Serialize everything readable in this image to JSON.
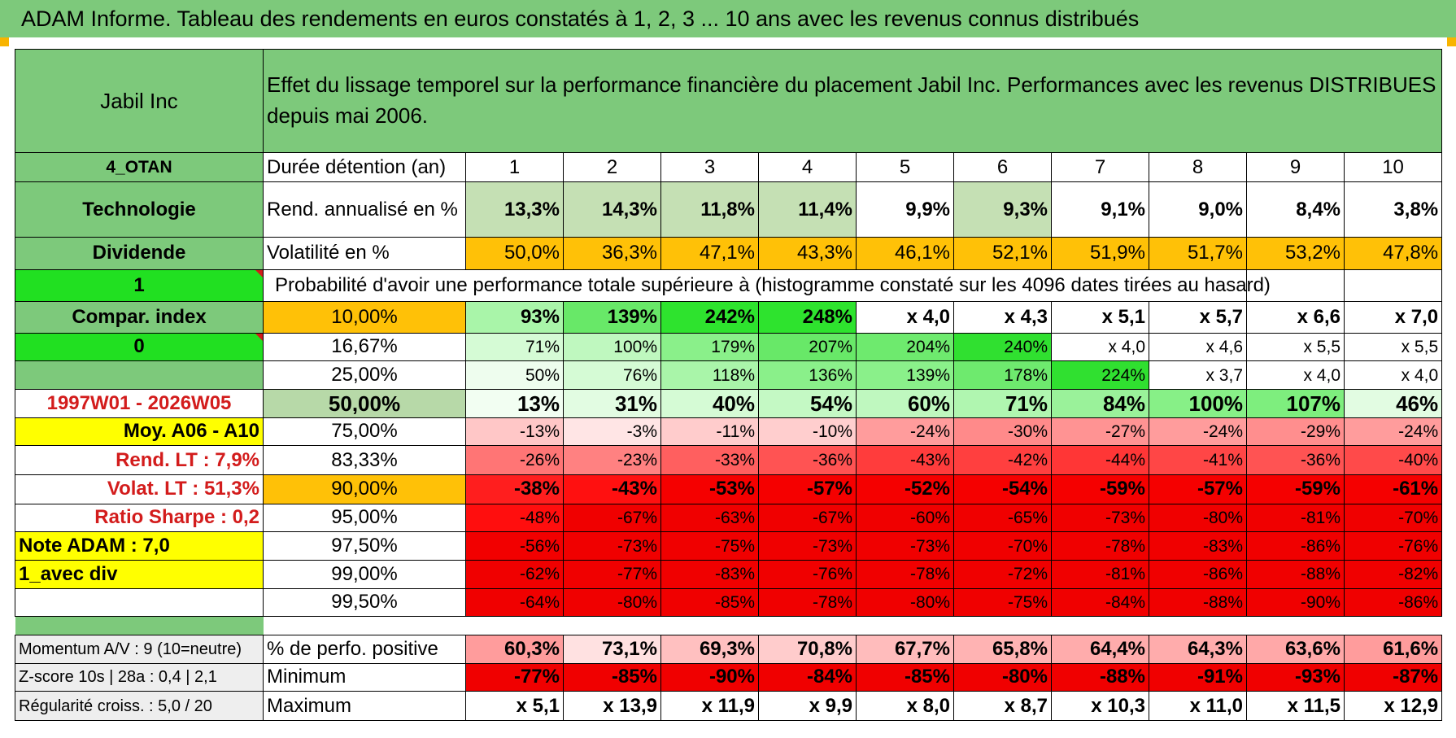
{
  "title": "ADAM Informe. Tableau des rendements en euros constatés à 1, 2, 3 ... 10 ans avec les revenus connus distribués",
  "header": {
    "company": "Jabil Inc",
    "description": "Effet du lissage temporel sur la performance financière du placement Jabil Inc. Performances avec les revenus DISTRIBUES depuis mai 2006."
  },
  "side": {
    "code": "4_OTAN",
    "sector": "Technologie",
    "dividend_label": "Dividende",
    "flag1": "1",
    "compar_label": "Compar. index",
    "flag2": "0",
    "period": "1997W01 - 2026W05",
    "moy": "Moy. A06 - A10",
    "rend_lt": "Rend. LT :   7,9%",
    "volat_lt": "Volat. LT :   51,3%",
    "sharpe": "Ratio Sharpe :    0,2",
    "note": "Note ADAM : 7,0",
    "avec_div": "1_avec div"
  },
  "labels": {
    "duration": "Durée détention (an)",
    "rend": "Rend. annualisé en %",
    "volat": "Volatilité en %",
    "proba": "Probabilité d'avoir une performance totale supérieure à (histogramme constaté sur les 4096 dates tirées au hasard)"
  },
  "years": [
    "1",
    "2",
    "3",
    "4",
    "5",
    "6",
    "7",
    "8",
    "9",
    "10"
  ],
  "rend": [
    "13,3%",
    "14,3%",
    "11,8%",
    "11,4%",
    "9,9%",
    "9,3%",
    "9,1%",
    "9,0%",
    "8,4%",
    "3,8%"
  ],
  "volat": [
    "50,0%",
    "36,3%",
    "47,1%",
    "43,3%",
    "46,1%",
    "52,1%",
    "51,9%",
    "51,7%",
    "53,2%",
    "47,8%"
  ],
  "percentiles": [
    {
      "label": "10,00%",
      "values": [
        "93%",
        "139%",
        "242%",
        "248%",
        "x 4,0",
        "x 4,3",
        "x 5,1",
        "x 5,7",
        "x 6,6",
        "x 7,0"
      ]
    },
    {
      "label": "16,67%",
      "values": [
        "71%",
        "100%",
        "179%",
        "207%",
        "204%",
        "240%",
        "x 4,0",
        "x 4,6",
        "x 5,5",
        "x 5,5"
      ]
    },
    {
      "label": "25,00%",
      "values": [
        "50%",
        "76%",
        "118%",
        "136%",
        "139%",
        "178%",
        "224%",
        "x 3,7",
        "x 4,0",
        "x 4,0"
      ]
    },
    {
      "label": "50,00%",
      "values": [
        "13%",
        "31%",
        "40%",
        "54%",
        "60%",
        "71%",
        "84%",
        "100%",
        "107%",
        "46%"
      ]
    },
    {
      "label": "75,00%",
      "values": [
        "-13%",
        "-3%",
        "-11%",
        "-10%",
        "-24%",
        "-30%",
        "-27%",
        "-24%",
        "-29%",
        "-24%"
      ]
    },
    {
      "label": "83,33%",
      "values": [
        "-26%",
        "-23%",
        "-33%",
        "-36%",
        "-43%",
        "-42%",
        "-44%",
        "-41%",
        "-36%",
        "-40%"
      ]
    },
    {
      "label": "90,00%",
      "values": [
        "-38%",
        "-43%",
        "-53%",
        "-57%",
        "-52%",
        "-54%",
        "-59%",
        "-57%",
        "-59%",
        "-61%"
      ]
    },
    {
      "label": "95,00%",
      "values": [
        "-48%",
        "-67%",
        "-63%",
        "-67%",
        "-60%",
        "-65%",
        "-73%",
        "-80%",
        "-81%",
        "-70%"
      ]
    },
    {
      "label": "97,50%",
      "values": [
        "-56%",
        "-73%",
        "-75%",
        "-73%",
        "-73%",
        "-70%",
        "-78%",
        "-83%",
        "-86%",
        "-76%"
      ]
    },
    {
      "label": "99,00%",
      "values": [
        "-62%",
        "-77%",
        "-83%",
        "-76%",
        "-78%",
        "-72%",
        "-81%",
        "-86%",
        "-88%",
        "-82%"
      ]
    },
    {
      "label": "99,50%",
      "values": [
        "-64%",
        "-80%",
        "-85%",
        "-78%",
        "-80%",
        "-75%",
        "-84%",
        "-88%",
        "-90%",
        "-86%"
      ]
    }
  ],
  "bottom": {
    "momentum": "Momentum A/V : 9 (10=neutre)",
    "zscore": "Z-score 10s | 28a : 0,4 | 2,1",
    "regularite": "Régularité croiss. : 5,0 / 20",
    "pos_label": "% de perfo. positive",
    "min_label": "Minimum",
    "max_label": "Maximum",
    "positive": [
      "60,3%",
      "73,1%",
      "69,3%",
      "70,8%",
      "67,7%",
      "65,8%",
      "64,4%",
      "64,3%",
      "63,6%",
      "61,6%"
    ],
    "minimum": [
      "-77%",
      "-85%",
      "-90%",
      "-84%",
      "-85%",
      "-80%",
      "-88%",
      "-91%",
      "-93%",
      "-87%"
    ],
    "maximum": [
      "x 5,1",
      "x 13,9",
      "x 11,9",
      "x 9,9",
      "x 8,0",
      "x 8,7",
      "x 10,3",
      "x 11,0",
      "x 11,5",
      "x 12,9"
    ]
  },
  "colors": {
    "header_green": "#7dc97b",
    "light_green": "#b7d9a8",
    "bright_green": "#21e021",
    "orange": "#ffc107",
    "yellow": "#ffff00",
    "red_text": "#d31c1c",
    "rend_cells": [
      "#c5e0b4",
      "#c5e0b4",
      "#c5e0b4",
      "#c5e0b4",
      "#ffffff",
      "#c5e0b4",
      "#ffffff",
      "#ffffff",
      "#ffffff",
      "#ffffff"
    ],
    "percentile_cells": [
      [
        "#a9f5a9",
        "#68e868",
        "#2ee32e",
        "#2ee32e",
        "#ffffff",
        "#ffffff",
        "#ffffff",
        "#ffffff",
        "#ffffff",
        "#ffffff"
      ],
      [
        "#d5fbd5",
        "#bff8bf",
        "#8af08a",
        "#68e868",
        "#6eea6e",
        "#30e030",
        "#ffffff",
        "#ffffff",
        "#ffffff",
        "#ffffff"
      ],
      [
        "#eefdee",
        "#d5fbd5",
        "#a9f5a9",
        "#8af08a",
        "#8af08a",
        "#6eea6e",
        "#30e030",
        "#ffffff",
        "#ffffff",
        "#ffffff"
      ],
      [
        "#f2fef2",
        "#e2fce2",
        "#d5fbd5",
        "#c4f9c4",
        "#bff8bf",
        "#b0f6b0",
        "#9af29a",
        "#87f087",
        "#7eee7e",
        "#e2fce2"
      ],
      [
        "#ffc7c7",
        "#ffe5e5",
        "#ffcccc",
        "#ffcece",
        "#ff9c9c",
        "#ff8a8a",
        "#ff9393",
        "#ff9c9c",
        "#ff8e8e",
        "#ff9c9c"
      ],
      [
        "#ff7575",
        "#ff8181",
        "#ff5f5f",
        "#ff5353",
        "#ff3c3c",
        "#ff3f3f",
        "#ff3636",
        "#ff4646",
        "#ff5353",
        "#ff4a4a"
      ],
      [
        "#ff1e1e",
        "#ff1010",
        "#f50000",
        "#f50000",
        "#f50000",
        "#f50000",
        "#f50000",
        "#f50000",
        "#f50000",
        "#f50000"
      ],
      [
        "#ff0e0e",
        "#f00000",
        "#f00000",
        "#f00000",
        "#f00000",
        "#f00000",
        "#f00000",
        "#f00000",
        "#f00000",
        "#f00000"
      ],
      [
        "#f20000",
        "#f00000",
        "#f00000",
        "#f00000",
        "#f00000",
        "#f00000",
        "#f00000",
        "#f00000",
        "#f00000",
        "#f00000"
      ],
      [
        "#f00000",
        "#f00000",
        "#f00000",
        "#f00000",
        "#f00000",
        "#f00000",
        "#f00000",
        "#f00000",
        "#f00000",
        "#f00000"
      ],
      [
        "#f00000",
        "#f00000",
        "#f00000",
        "#f00000",
        "#f00000",
        "#f00000",
        "#f00000",
        "#f00000",
        "#f00000",
        "#f00000"
      ]
    ],
    "positive_cells": [
      "#ff9c9c",
      "#ffe1e1",
      "#ffc0c0",
      "#ffcccc",
      "#ffbcbc",
      "#ffb3b3",
      "#ffacac",
      "#ffacac",
      "#ffa8a8",
      "#ff9c9c"
    ],
    "minimum_cells": [
      "#f00000",
      "#f00000",
      "#f00000",
      "#f00000",
      "#f00000",
      "#f00000",
      "#f00000",
      "#f00000",
      "#f00000",
      "#f00000"
    ]
  }
}
